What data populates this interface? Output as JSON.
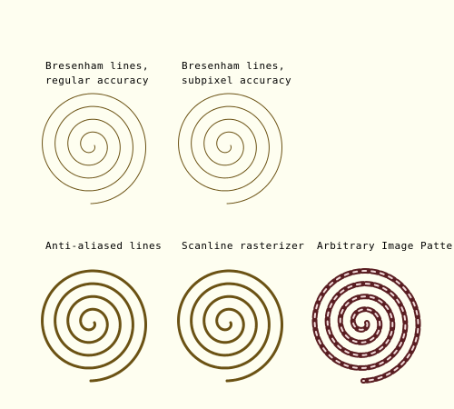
{
  "panels": [
    {
      "label": "Bresenham lines,\nregular accuracy",
      "style": "thin-regular",
      "color": "#6b5214"
    },
    {
      "label": "Bresenham lines,\nsubpixel accuracy",
      "style": "thin-subpixel",
      "color": "#6b5214"
    },
    {
      "label": "Anti-aliased lines",
      "style": "thick-aa",
      "color": "#6b5214"
    },
    {
      "label": "Scanline rasterizer",
      "style": "thick-scanline",
      "color": "#6b5214"
    },
    {
      "label": "Arbitrary Image Pattern",
      "style": "chain-pattern",
      "color": "#5a1e22"
    }
  ]
}
